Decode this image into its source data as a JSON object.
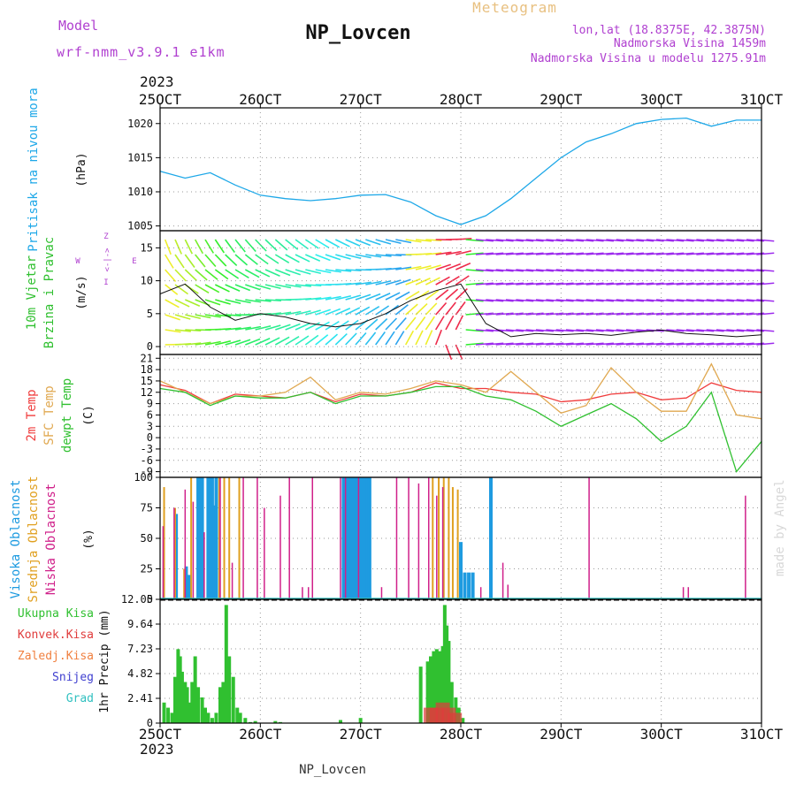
{
  "header": {
    "model_label": "Model",
    "model_value": "wrf-nmm_v3.9.1 e1km",
    "station": "NP_Lovcen",
    "product": "Meteogram",
    "lonlat": "lon,lat (18.8375E, 42.3875N)",
    "elevation": "Nadmorska Visina 1459m",
    "model_elevation": "Nadmorska Visina u modelu 1275.91m",
    "footer_station": "NP_Lovcen",
    "credit": "made by Angel",
    "year": "2023"
  },
  "colors": {
    "pressure": "#1ea8e8",
    "temp2m": "#f03c3c",
    "sfc_temp": "#e0a850",
    "dewpt": "#30c030",
    "high_cloud": "#1e9be0",
    "mid_cloud": "#e0a020",
    "low_cloud": "#d0208a",
    "precip_total": "#30c030",
    "precip_conv": "#e03c3c",
    "title_purple": "#b040d0",
    "meteogram_orange": "#e8c080"
  },
  "x_ticks": [
    "25OCT",
    "26OCT",
    "27OCT",
    "28OCT",
    "29OCT",
    "30OCT",
    "31OCT"
  ],
  "chart_data": [
    {
      "type": "line",
      "panel": "pressure",
      "ylabel_side": "Pritisak na nivou mora",
      "unit": "(hPa)",
      "yticks": [
        1005,
        1010,
        1015,
        1020
      ],
      "ylim": [
        1004.3,
        1022.3
      ],
      "grid": true,
      "series": [
        {
          "x": [
            0,
            0.25,
            0.5,
            0.75,
            1,
            1.25,
            1.5,
            1.75,
            2,
            2.25,
            2.5,
            2.75,
            3,
            3.25,
            3.5,
            3.75,
            4,
            4.25,
            4.5,
            4.75,
            5,
            5.25,
            5.5,
            5.75,
            6
          ],
          "values": [
            1013,
            1012,
            1012.8,
            1011,
            1009.5,
            1009,
            1008.7,
            1009,
            1009.5,
            1009.6,
            1008.5,
            1006.5,
            1005.2,
            1006.5,
            1009,
            1012,
            1015,
            1017.3,
            1018.5,
            1020,
            1020.6,
            1020.8,
            1019.6,
            1020.5,
            1020.5
          ]
        }
      ]
    },
    {
      "type": "line",
      "panel": "wind",
      "ylabel_side": [
        "10m Vjetar",
        "Brzina i Pravac"
      ],
      "unit": "(m/s)",
      "legend_axis": [
        "Z",
        "<-|->",
        "I",
        "W",
        "E"
      ],
      "yticks": [
        0,
        5,
        10,
        15
      ],
      "ylim": [
        -1.2,
        17.6
      ],
      "grid": true,
      "series": [
        {
          "name": "speed",
          "x": [
            0,
            0.25,
            0.5,
            0.75,
            1,
            1.25,
            1.5,
            1.75,
            2,
            2.25,
            2.5,
            2.75,
            3,
            3.25,
            3.5,
            3.75,
            4,
            4.25,
            4.5,
            4.75,
            5,
            5.25,
            5.5,
            5.75,
            6
          ],
          "values": [
            8,
            9.5,
            6,
            4,
            5,
            4.5,
            3.5,
            3,
            3.5,
            5,
            7,
            8.5,
            9.5,
            3.5,
            1.5,
            2,
            1.8,
            2,
            1.7,
            2.2,
            2.5,
            2,
            1.8,
            1.5,
            1.8
          ]
        }
      ]
    },
    {
      "type": "line",
      "panel": "temperature",
      "ylabel_side": [
        "2m Temp",
        "SFC Temp",
        "dewpt Temp"
      ],
      "unit": "(C)",
      "yticks": [
        -9,
        -6,
        -3,
        0,
        3,
        6,
        9,
        12,
        15,
        18,
        21
      ],
      "ylim": [
        -10.5,
        22
      ],
      "grid": true,
      "x": [
        0,
        0.25,
        0.5,
        0.75,
        1,
        1.25,
        1.5,
        1.75,
        2,
        2.25,
        2.5,
        2.75,
        3,
        3.25,
        3.5,
        3.75,
        4,
        4.25,
        4.5,
        4.75,
        5,
        5.25,
        5.5,
        5.75,
        6
      ],
      "series": [
        {
          "name": "2m Temp",
          "values": [
            14,
            12.5,
            9,
            11.5,
            11,
            10.5,
            12,
            9.5,
            11.5,
            11,
            12,
            14.5,
            13,
            13,
            12,
            11.5,
            9.5,
            10,
            11.5,
            12,
            10,
            10.5,
            14.5,
            12.5,
            12
          ]
        },
        {
          "name": "SFC Temp",
          "values": [
            15,
            12,
            9,
            11,
            11,
            12,
            16,
            10,
            12,
            11.5,
            13,
            15,
            14,
            12,
            17.5,
            12,
            6.5,
            8.5,
            18.5,
            12,
            7,
            7,
            19.5,
            6,
            5
          ]
        },
        {
          "name": "dewpt Temp",
          "values": [
            13,
            12,
            8.5,
            11,
            10.5,
            10.5,
            12,
            9,
            11,
            11,
            12,
            13.5,
            13.5,
            11,
            10,
            7,
            3,
            6,
            9,
            5,
            -1,
            3,
            12,
            -9,
            -1
          ]
        }
      ]
    },
    {
      "type": "bar",
      "panel": "cloud",
      "ylabel_side": [
        "Visoka Oblacnost",
        "Srednja Oblacnost",
        "Niska Oblacnost"
      ],
      "unit": "(%)",
      "yticks": [
        0,
        25,
        50,
        75,
        100
      ],
      "ylim": [
        0,
        100
      ],
      "grid": true,
      "series": [
        {
          "name": "Visoka Oblacnost",
          "x": [
            0.16,
            0.26,
            0.29,
            0.38,
            0.4,
            0.42,
            0.48,
            0.5,
            0.52,
            0.54,
            0.56,
            1.83,
            1.85,
            1.87,
            1.89,
            1.91,
            1.93,
            1.95,
            1.97,
            1.99,
            2.01,
            2.03,
            2.05,
            2.07,
            2.09,
            3.0,
            3.04,
            3.08,
            3.12,
            3.3
          ],
          "values": [
            70,
            27,
            20,
            100,
            100,
            100,
            100,
            100,
            100,
            77,
            100,
            100,
            100,
            100,
            100,
            100,
            100,
            100,
            100,
            100,
            100,
            100,
            100,
            100,
            100,
            47,
            22,
            22,
            22,
            100
          ]
        },
        {
          "name": "Srednja Oblacnost",
          "x": [
            0.04,
            0.15,
            0.24,
            0.31,
            0.59,
            0.64,
            0.69,
            0.79,
            2.72,
            2.78,
            2.83,
            2.88,
            2.92,
            2.97
          ],
          "values": [
            92,
            75,
            25,
            100,
            100,
            100,
            100,
            100,
            100,
            100,
            100,
            100,
            92,
            90
          ]
        },
        {
          "name": "Niska Oblacnost",
          "x": [
            0.03,
            0.14,
            0.25,
            0.33,
            0.44,
            0.6,
            0.72,
            0.83,
            0.97,
            1.04,
            1.2,
            1.29,
            1.42,
            1.48,
            1.52,
            1.8,
            1.85,
            1.98,
            2.21,
            2.36,
            2.48,
            2.58,
            2.68,
            2.76,
            2.82,
            3.2,
            3.42,
            3.47,
            4.28,
            4.85,
            5.22,
            5.27,
            5.8,
            5.84
          ],
          "values": [
            60,
            75,
            90,
            80,
            55,
            100,
            30,
            100,
            100,
            75,
            85,
            100,
            10,
            10,
            100,
            100,
            100,
            100,
            10,
            100,
            100,
            95,
            100,
            85,
            92,
            10,
            30,
            12,
            100,
            1,
            10,
            10,
            1,
            85
          ]
        }
      ]
    },
    {
      "type": "bar",
      "panel": "precip",
      "ylabel_side": "1hr Precip (mm)",
      "legend": [
        "Ukupna Kisa",
        "Konvek.Kisa",
        "Zaledj.Kisa",
        "Snijeg",
        "Grad"
      ],
      "yticks": [
        "0",
        "2.41",
        "4.82",
        "7.23",
        "9.64",
        "12.05"
      ],
      "ylim": [
        0,
        12.05
      ],
      "grid": true,
      "series": [
        {
          "name": "Ukupna Kisa",
          "x": [
            0.04,
            0.08,
            0.12,
            0.15,
            0.18,
            0.2,
            0.22,
            0.25,
            0.27,
            0.29,
            0.32,
            0.35,
            0.38,
            0.42,
            0.45,
            0.48,
            0.52,
            0.56,
            0.6,
            0.63,
            0.66,
            0.69,
            0.73,
            0.77,
            0.8,
            0.85,
            0.9,
            0.95,
            1.15,
            1.2,
            1.8,
            2.0,
            2.6,
            2.67,
            2.7,
            2.73,
            2.76,
            2.79,
            2.82,
            2.84,
            2.86,
            2.88,
            2.91,
            2.95,
            2.98,
            3.02
          ],
          "values": [
            2,
            1.5,
            1,
            4.5,
            7.2,
            6.5,
            5,
            4,
            3.5,
            2,
            4,
            6.5,
            3.5,
            2.5,
            1.5,
            1,
            0.5,
            1,
            3.5,
            4,
            11.5,
            6.5,
            4.5,
            1.5,
            1,
            0.5,
            0.1,
            0.2,
            0.2,
            0.1,
            0.3,
            0.5,
            5.5,
            6,
            6.5,
            7,
            7.2,
            7,
            7.5,
            11.5,
            9.5,
            8,
            4,
            2.5,
            1.5,
            0.5
          ]
        },
        {
          "name": "Konvek.Kisa",
          "x": [
            2.7,
            2.76,
            2.82,
            2.88,
            2.94
          ],
          "values": [
            1.5,
            1.5,
            2,
            1.5,
            1
          ]
        }
      ]
    }
  ]
}
